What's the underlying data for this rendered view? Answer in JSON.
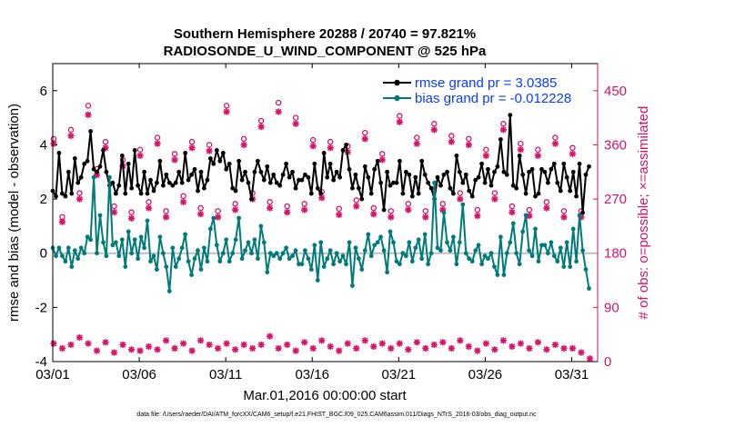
{
  "chart_data": {
    "type": "line",
    "title": "Southern Hemisphere 20288 / 20740 = 97.821%",
    "subtitle": "RADIOSONDE_U_WIND_COMPONENT @ 525 hPa",
    "xlabel": "Mar.01,2016 00:00:00 start",
    "ylabel": "rmse and bias (model - observation)",
    "ylabel_right": "# of obs: o=possible; ×=assimilated",
    "footer": "data file: /Users/raeder/DAI/ATM_forcXX/CAM6_setup/f.e21.FHIST_BGC.f09_025.CAM6assim.011/Diags_NTrS_2016-03/obs_diag_output.nc",
    "xlim": [
      0,
      31.5
    ],
    "ylim": [
      -4,
      7
    ],
    "ylim_right": [
      0,
      495
    ],
    "x_tick_labels": [
      "03/01",
      "03/06",
      "03/11",
      "03/16",
      "03/21",
      "03/26",
      "03/31"
    ],
    "y_tick_labels": [
      "-4",
      "-2",
      "0",
      "2",
      "4",
      "6"
    ],
    "y_right_tick_labels": [
      "0",
      "90",
      "180",
      "270",
      "360",
      "450"
    ],
    "colors": {
      "rmse": "#000000",
      "bias": "#007a7a",
      "obs": "#d6126a",
      "zero": "#bfbfbf"
    },
    "legend": {
      "location": "top-right",
      "rmse": "rmse grand pr = 3.0385",
      "bias": "bias grand pr = -0.012228"
    },
    "series": [
      {
        "name": "rmse",
        "values": [
          2.3,
          2.1,
          3.7,
          2.2,
          2.1,
          3.0,
          2.2,
          3.5,
          2.6,
          2.8,
          3.3,
          3.4,
          4.5,
          3.1,
          3.0,
          3.2,
          3.8,
          3.0,
          2.5,
          2.6,
          2.2,
          2.5,
          3.6,
          2.2,
          3.3,
          2.4,
          3.8,
          2.5,
          2.2,
          3.0,
          2.2,
          2.7,
          2.3,
          2.6,
          3.4,
          2.5,
          2.9,
          2.6,
          2.5,
          2.6,
          3.0,
          2.6,
          3.7,
          2.7,
          2.9,
          3.1,
          2.3,
          3.0,
          2.4,
          2.7,
          3.5,
          3.3,
          3.8,
          3.4,
          3.7,
          3.1,
          3.3,
          2.4,
          2.3,
          3.4,
          2.7,
          3.0,
          2.6,
          2.0,
          3.0,
          3.4,
          3.0,
          2.7,
          3.2,
          2.6,
          2.9,
          2.6,
          2.5,
          2.9,
          3.3,
          2.8,
          3.0,
          2.4,
          2.7,
          2.7,
          2.9,
          2.8,
          2.2,
          3.3,
          2.4,
          2.2,
          3.7,
          2.8,
          3.3,
          2.7,
          3.0,
          2.8,
          3.8,
          4.0,
          3.1,
          2.4,
          2.9,
          2.4,
          2.0,
          3.2,
          2.8,
          2.2,
          3.1,
          3.4,
          2.6,
          1.6,
          3.0,
          2.5,
          2.6,
          2.6,
          3.4,
          2.2,
          3.0,
          2.9,
          2.1,
          2.8,
          2.2,
          3.4,
          2.9,
          2.6,
          2.4,
          2.0,
          2.8,
          2.5,
          2.9,
          3.0,
          2.4,
          2.2,
          3.6,
          3.0,
          2.6,
          2.9,
          2.3,
          2.1,
          2.7,
          2.8,
          3.3,
          2.6,
          3.1,
          2.5,
          3.0,
          3.2,
          4.2,
          3.0,
          2.9,
          5.1,
          2.5,
          2.4,
          3.6,
          2.9,
          2.2,
          3.0,
          3.1,
          2.1,
          2.2,
          3.1,
          3.0,
          2.6,
          3.1,
          3.3,
          2.6,
          2.3,
          3.3,
          2.8,
          2.3,
          3.0,
          2.1,
          3.3,
          1.5,
          2.9,
          3.2
        ]
      },
      {
        "name": "bias",
        "values": [
          0.2,
          -0.1,
          0.2,
          -0.1,
          -0.3,
          0.2,
          -0.5,
          0.1,
          -0.2,
          0.2,
          0.0,
          0.6,
          0.5,
          2.8,
          0.0,
          1.4,
          0.4,
          -0.1,
          2.8,
          0.3,
          0.4,
          -0.1,
          0.5,
          -0.5,
          0.8,
          0.0,
          0.5,
          -0.2,
          0.6,
          0.2,
          1.2,
          -0.3,
          -0.1,
          -0.6,
          0.6,
          0.0,
          -0.5,
          -1.4,
          0.2,
          -0.5,
          -0.2,
          0.2,
          0.7,
          -0.3,
          -0.8,
          -0.2,
          0.1,
          -0.6,
          0.2,
          -0.3,
          0.9,
          1.3,
          0.3,
          -0.3,
          0.0,
          0.5,
          -0.3,
          0.0,
          0.5,
          1.3,
          -0.2,
          0.1,
          0.4,
          0.0,
          0.5,
          -0.2,
          1.0,
          0.4,
          -0.7,
          0.0,
          -0.1,
          0.0,
          -0.2,
          0.0,
          0.2,
          -0.2,
          -0.1,
          0.1,
          -0.4,
          -0.4,
          0.1,
          -0.2,
          -0.6,
          0.3,
          -1.0,
          0.4,
          -0.5,
          -0.2,
          0.1,
          -0.4,
          0.0,
          -0.3,
          -0.1,
          -0.4,
          0.4,
          -1.2,
          0.2,
          -0.2,
          -0.6,
          0.1,
          0.7,
          -0.1,
          0.3,
          0.4,
          0.6,
          0.1,
          -0.7,
          0.8,
          0.4,
          -0.3,
          -0.4,
          0.0,
          -0.1,
          0.4,
          -0.3,
          0.2,
          0.5,
          -0.2,
          0.7,
          -0.4,
          0.0,
          2.6,
          0.2,
          0.1,
          1.5,
          0.4,
          0.1,
          0.6,
          -0.4,
          0.4,
          1.8,
          0.0,
          -0.2,
          -0.3,
          0.1,
          0.3,
          -0.4,
          -0.1,
          -0.2,
          0.0,
          -0.5,
          -0.8,
          0.6,
          -0.8,
          0.0,
          0.4,
          1.1,
          0.0,
          -0.4,
          0.8,
          1.4,
          0.1,
          -0.1,
          0.9,
          -0.3,
          0.3,
          0.3,
          0.0,
          0.4,
          -0.1,
          -0.3,
          0.2,
          -0.5,
          0.4,
          -0.5,
          0.9,
          -0.3,
          1.4,
          0.1,
          -0.6,
          -1.3
        ]
      }
    ],
    "obs_possible": [
      {
        "day": 0.05,
        "n": 370
      },
      {
        "day": 0.55,
        "n": 240
      },
      {
        "day": 1.05,
        "n": 385
      },
      {
        "day": 1.55,
        "n": 280
      },
      {
        "day": 2.05,
        "n": 425
      },
      {
        "day": 2.55,
        "n": 320
      },
      {
        "day": 3.05,
        "n": 365
      },
      {
        "day": 3.55,
        "n": 258
      },
      {
        "day": 4.05,
        "n": 335
      },
      {
        "day": 4.55,
        "n": 248
      },
      {
        "day": 5.05,
        "n": 352
      },
      {
        "day": 5.55,
        "n": 265
      },
      {
        "day": 6.05,
        "n": 372
      },
      {
        "day": 6.55,
        "n": 250
      },
      {
        "day": 7.05,
        "n": 345
      },
      {
        "day": 7.55,
        "n": 275
      },
      {
        "day": 8.05,
        "n": 365
      },
      {
        "day": 8.55,
        "n": 255
      },
      {
        "day": 9.05,
        "n": 360
      },
      {
        "day": 9.55,
        "n": 250
      },
      {
        "day": 10.05,
        "n": 425
      },
      {
        "day": 10.55,
        "n": 262
      },
      {
        "day": 11.05,
        "n": 370
      },
      {
        "day": 11.55,
        "n": 280
      },
      {
        "day": 12.05,
        "n": 400
      },
      {
        "day": 12.55,
        "n": 265
      },
      {
        "day": 13.05,
        "n": 430
      },
      {
        "day": 13.55,
        "n": 258
      },
      {
        "day": 14.05,
        "n": 405
      },
      {
        "day": 14.55,
        "n": 262
      },
      {
        "day": 15.05,
        "n": 368
      },
      {
        "day": 15.55,
        "n": 282
      },
      {
        "day": 16.05,
        "n": 365
      },
      {
        "day": 16.55,
        "n": 254
      },
      {
        "day": 17.05,
        "n": 358
      },
      {
        "day": 17.55,
        "n": 268
      },
      {
        "day": 18.05,
        "n": 380
      },
      {
        "day": 18.55,
        "n": 255
      },
      {
        "day": 19.05,
        "n": 345
      },
      {
        "day": 19.55,
        "n": 250
      },
      {
        "day": 20.05,
        "n": 408
      },
      {
        "day": 20.55,
        "n": 262
      },
      {
        "day": 21.05,
        "n": 372
      },
      {
        "day": 21.55,
        "n": 250
      },
      {
        "day": 22.05,
        "n": 395
      },
      {
        "day": 22.55,
        "n": 262
      },
      {
        "day": 23.05,
        "n": 375
      },
      {
        "day": 23.55,
        "n": 280
      },
      {
        "day": 24.05,
        "n": 370
      },
      {
        "day": 24.55,
        "n": 252
      },
      {
        "day": 25.05,
        "n": 352
      },
      {
        "day": 25.55,
        "n": 280
      },
      {
        "day": 26.05,
        "n": 395
      },
      {
        "day": 26.55,
        "n": 258
      },
      {
        "day": 27.05,
        "n": 362
      },
      {
        "day": 27.55,
        "n": 252
      },
      {
        "day": 28.05,
        "n": 352
      },
      {
        "day": 28.55,
        "n": 265
      },
      {
        "day": 29.05,
        "n": 372
      },
      {
        "day": 29.55,
        "n": 250
      },
      {
        "day": 30.05,
        "n": 355
      },
      {
        "day": 30.55,
        "n": 250
      }
    ],
    "obs_assimilated": [
      {
        "day": 0.05,
        "n": 362
      },
      {
        "day": 0.55,
        "n": 232
      },
      {
        "day": 1.05,
        "n": 375
      },
      {
        "day": 1.55,
        "n": 270
      },
      {
        "day": 2.05,
        "n": 410
      },
      {
        "day": 2.55,
        "n": 310
      },
      {
        "day": 3.05,
        "n": 355
      },
      {
        "day": 3.55,
        "n": 248
      },
      {
        "day": 4.05,
        "n": 325
      },
      {
        "day": 4.55,
        "n": 238
      },
      {
        "day": 5.05,
        "n": 342
      },
      {
        "day": 5.55,
        "n": 255
      },
      {
        "day": 6.05,
        "n": 362
      },
      {
        "day": 6.55,
        "n": 240
      },
      {
        "day": 7.05,
        "n": 335
      },
      {
        "day": 7.55,
        "n": 265
      },
      {
        "day": 8.05,
        "n": 355
      },
      {
        "day": 8.55,
        "n": 245
      },
      {
        "day": 9.05,
        "n": 350
      },
      {
        "day": 9.55,
        "n": 240
      },
      {
        "day": 10.05,
        "n": 415
      },
      {
        "day": 10.55,
        "n": 252
      },
      {
        "day": 11.05,
        "n": 360
      },
      {
        "day": 11.55,
        "n": 270
      },
      {
        "day": 12.05,
        "n": 390
      },
      {
        "day": 12.55,
        "n": 255
      },
      {
        "day": 13.05,
        "n": 415
      },
      {
        "day": 13.55,
        "n": 248
      },
      {
        "day": 14.05,
        "n": 395
      },
      {
        "day": 14.55,
        "n": 252
      },
      {
        "day": 15.05,
        "n": 358
      },
      {
        "day": 15.55,
        "n": 272
      },
      {
        "day": 16.05,
        "n": 355
      },
      {
        "day": 16.55,
        "n": 244
      },
      {
        "day": 17.05,
        "n": 348
      },
      {
        "day": 17.55,
        "n": 258
      },
      {
        "day": 18.05,
        "n": 370
      },
      {
        "day": 18.55,
        "n": 245
      },
      {
        "day": 19.05,
        "n": 335
      },
      {
        "day": 19.55,
        "n": 240
      },
      {
        "day": 20.05,
        "n": 398
      },
      {
        "day": 20.55,
        "n": 252
      },
      {
        "day": 21.05,
        "n": 362
      },
      {
        "day": 21.55,
        "n": 240
      },
      {
        "day": 22.05,
        "n": 385
      },
      {
        "day": 22.55,
        "n": 252
      },
      {
        "day": 23.05,
        "n": 365
      },
      {
        "day": 23.55,
        "n": 270
      },
      {
        "day": 24.05,
        "n": 360
      },
      {
        "day": 24.55,
        "n": 242
      },
      {
        "day": 25.05,
        "n": 342
      },
      {
        "day": 25.55,
        "n": 270
      },
      {
        "day": 26.05,
        "n": 385
      },
      {
        "day": 26.55,
        "n": 248
      },
      {
        "day": 27.05,
        "n": 352
      },
      {
        "day": 27.55,
        "n": 242
      },
      {
        "day": 28.05,
        "n": 342
      },
      {
        "day": 28.55,
        "n": 255
      },
      {
        "day": 29.05,
        "n": 362
      },
      {
        "day": 29.55,
        "n": 240
      },
      {
        "day": 30.05,
        "n": 345
      },
      {
        "day": 30.55,
        "n": 240
      }
    ],
    "obs_small_assimilated": [
      {
        "day": 0.05,
        "n": 30
      },
      {
        "day": 0.55,
        "n": 22
      },
      {
        "day": 1.05,
        "n": 28
      },
      {
        "day": 1.55,
        "n": 40
      },
      {
        "day": 2.05,
        "n": 30
      },
      {
        "day": 2.55,
        "n": 18
      },
      {
        "day": 3.05,
        "n": 32
      },
      {
        "day": 3.55,
        "n": 15
      },
      {
        "day": 4.05,
        "n": 28
      },
      {
        "day": 4.55,
        "n": 20
      },
      {
        "day": 5.05,
        "n": 18
      },
      {
        "day": 5.55,
        "n": 25
      },
      {
        "day": 6.05,
        "n": 20
      },
      {
        "day": 6.55,
        "n": 35
      },
      {
        "day": 7.05,
        "n": 22
      },
      {
        "day": 7.55,
        "n": 30
      },
      {
        "day": 8.05,
        "n": 18
      },
      {
        "day": 8.55,
        "n": 35
      },
      {
        "day": 9.05,
        "n": 28
      },
      {
        "day": 9.55,
        "n": 22
      },
      {
        "day": 10.05,
        "n": 30
      },
      {
        "day": 10.55,
        "n": 20
      },
      {
        "day": 11.05,
        "n": 28
      },
      {
        "day": 11.55,
        "n": 22
      },
      {
        "day": 12.05,
        "n": 28
      },
      {
        "day": 12.55,
        "n": 42
      },
      {
        "day": 13.05,
        "n": 22
      },
      {
        "day": 13.55,
        "n": 28
      },
      {
        "day": 14.05,
        "n": 18
      },
      {
        "day": 14.55,
        "n": 32
      },
      {
        "day": 15.05,
        "n": 22
      },
      {
        "day": 15.55,
        "n": 35
      },
      {
        "day": 16.05,
        "n": 25
      },
      {
        "day": 16.55,
        "n": 18
      },
      {
        "day": 17.05,
        "n": 30
      },
      {
        "day": 17.55,
        "n": 22
      },
      {
        "day": 18.05,
        "n": 35
      },
      {
        "day": 18.55,
        "n": 25
      },
      {
        "day": 19.05,
        "n": 30
      },
      {
        "day": 19.55,
        "n": 22
      },
      {
        "day": 20.05,
        "n": 30
      },
      {
        "day": 20.55,
        "n": 20
      },
      {
        "day": 21.05,
        "n": 32
      },
      {
        "day": 21.55,
        "n": 22
      },
      {
        "day": 22.05,
        "n": 28
      },
      {
        "day": 22.55,
        "n": 32
      },
      {
        "day": 23.05,
        "n": 22
      },
      {
        "day": 23.55,
        "n": 35
      },
      {
        "day": 24.05,
        "n": 25
      },
      {
        "day": 24.55,
        "n": 18
      },
      {
        "day": 25.05,
        "n": 30
      },
      {
        "day": 25.55,
        "n": 20
      },
      {
        "day": 26.05,
        "n": 35
      },
      {
        "day": 26.55,
        "n": 25
      },
      {
        "day": 27.05,
        "n": 30
      },
      {
        "day": 27.55,
        "n": 22
      },
      {
        "day": 28.05,
        "n": 32
      },
      {
        "day": 28.55,
        "n": 20
      },
      {
        "day": 29.05,
        "n": 28
      },
      {
        "day": 29.55,
        "n": 22
      },
      {
        "day": 30.05,
        "n": 22
      },
      {
        "day": 30.55,
        "n": 15
      },
      {
        "day": 31.05,
        "n": 5
      }
    ]
  }
}
